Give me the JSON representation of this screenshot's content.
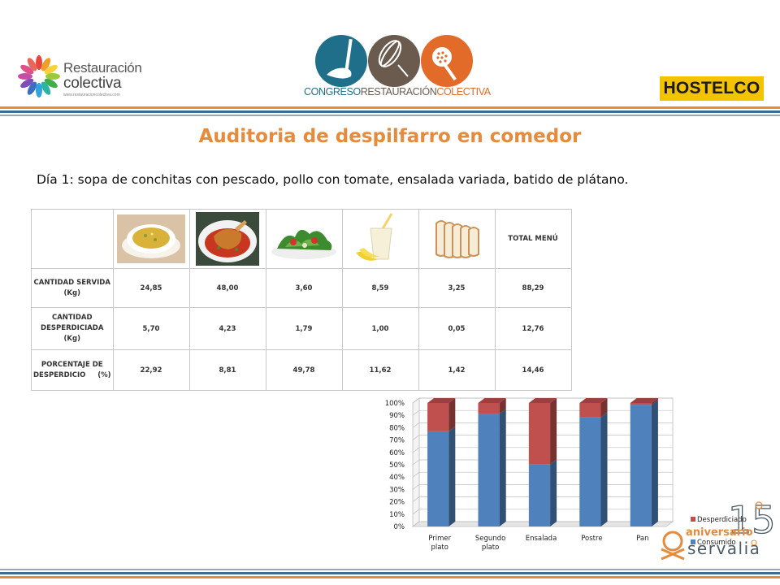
{
  "header": {
    "rc_logo": {
      "line1": "Restauración",
      "line2": "colectiva",
      "url": "www.restauracioncolectiva.com"
    },
    "congreso_logo": {
      "part1": "CONGRESO",
      "part2": "RESTAURACIÓN",
      "part3": "COLECTIVA"
    },
    "hostelco_logo": "HOSTELCO"
  },
  "title": "Auditoria de despilfarro en comedor",
  "subtitle": "Día 1: sopa de conchitas con pescado, pollo con tomate, ensalada variada, batido de plátano.",
  "table": {
    "total_header": "TOTAL MENÚ",
    "dish_icons": [
      "soup-bowl-icon",
      "chicken-tomato-icon",
      "salad-icon",
      "banana-shake-icon",
      "bread-slices-icon"
    ],
    "rows": [
      {
        "label_lines": [
          "CANTIDAD SERVIDA",
          "(Kg)"
        ],
        "values": [
          "24,85",
          "48,00",
          "3,60",
          "8,59",
          "3,25",
          "88,29"
        ]
      },
      {
        "label_lines": [
          "CANTIDAD",
          "DESPERDICIADA",
          "(Kg)"
        ],
        "values": [
          "5,70",
          "4,23",
          "1,79",
          "1,00",
          "0,05",
          "12,76"
        ]
      },
      {
        "label_lines": [
          "PORCENTAJE DE",
          "DESPERDICIO     (%)"
        ],
        "values": [
          "22,92",
          "8,81",
          "49,78",
          "11,62",
          "1,42",
          "14,46"
        ]
      }
    ]
  },
  "chart_data": {
    "type": "bar",
    "stacked": true,
    "percent": true,
    "three_d": true,
    "categories": [
      "Primer plato",
      "Segundo plato",
      "Ensalada",
      "Postre",
      "Pan"
    ],
    "series": [
      {
        "name": "Consumido",
        "color": "#4f81bd",
        "values": [
          77.08,
          91.19,
          50.22,
          88.38,
          98.58
        ]
      },
      {
        "name": "Desperdiciado",
        "color": "#c0504d",
        "values": [
          22.92,
          8.81,
          49.78,
          11.62,
          1.42
        ]
      }
    ],
    "y_ticks": [
      "0%",
      "10%",
      "20%",
      "30%",
      "40%",
      "50%",
      "60%",
      "70%",
      "80%",
      "90%",
      "100%"
    ],
    "ylim": [
      0,
      100
    ],
    "grid": true,
    "legend_position": "right",
    "legend_order": [
      "Desperdiciado",
      "Consumido"
    ]
  },
  "footer_logo": {
    "number": "15",
    "word1": "aniversario",
    "brand": "servalia"
  }
}
